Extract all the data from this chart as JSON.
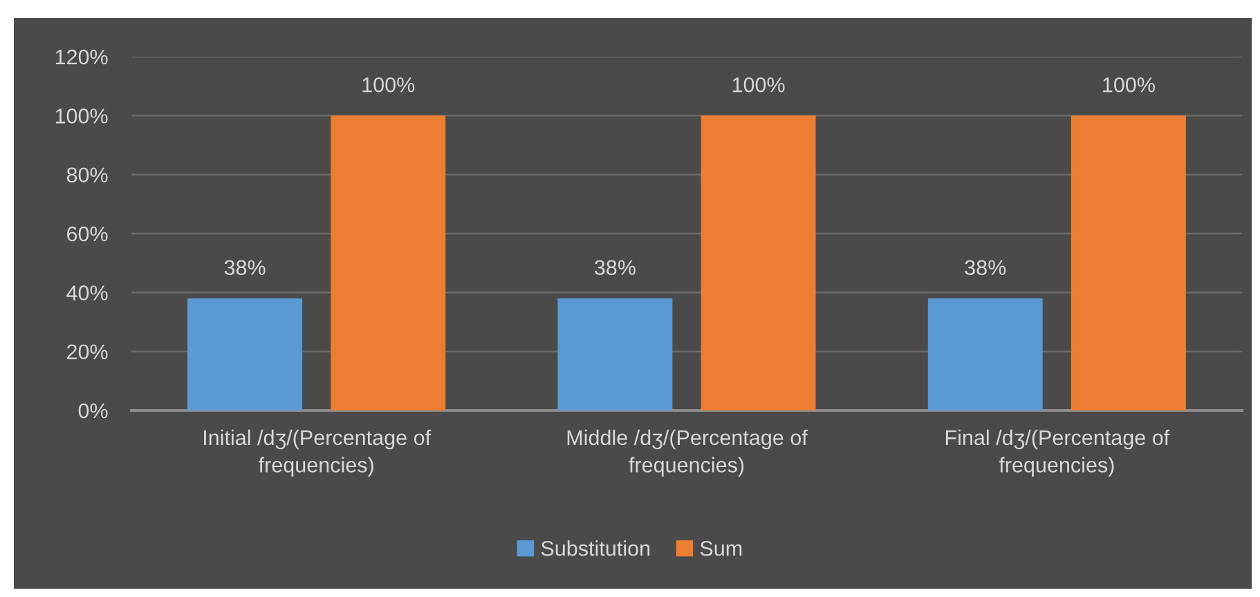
{
  "chart_data": {
    "type": "bar",
    "categories": [
      "Initial /dʒ/(Percentage of\nfrequencies)",
      "Middle /dʒ/(Percentage of\nfrequencies)",
      "Final /dʒ/(Percentage of\nfrequencies)"
    ],
    "series": [
      {
        "name": "Substitution",
        "color": "#5b9bd5",
        "values": [
          38,
          38,
          38
        ],
        "value_labels": [
          "38%",
          "38%",
          "38%"
        ]
      },
      {
        "name": "Sum",
        "color": "#ed7d31",
        "values": [
          100,
          100,
          100
        ],
        "value_labels": [
          "100%",
          "100%",
          "100%"
        ]
      }
    ],
    "ylim": [
      0,
      120
    ],
    "yticks": [
      {
        "value": 0,
        "label": "0%"
      },
      {
        "value": 20,
        "label": "20%"
      },
      {
        "value": 40,
        "label": "40%"
      },
      {
        "value": 60,
        "label": "60%"
      },
      {
        "value": 80,
        "label": "80%"
      },
      {
        "value": 100,
        "label": "100%"
      },
      {
        "value": 120,
        "label": "120%"
      }
    ],
    "grid": "y",
    "legend": "bottom"
  }
}
